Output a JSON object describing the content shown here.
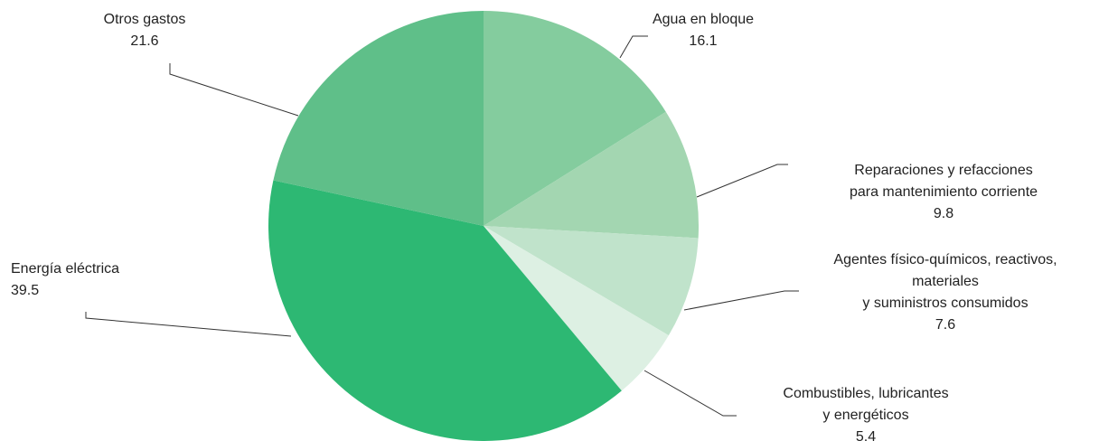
{
  "chart_data": {
    "type": "pie",
    "categories": [
      [
        "Agua en bloque"
      ],
      [
        "Reparaciones y refacciones",
        "para mantenimiento corriente"
      ],
      [
        "Agentes físico-químicos, reactivos,",
        "materiales",
        "y suministros consumidos"
      ],
      [
        "Combustibles, lubricantes",
        "y energéticos"
      ],
      [
        "Energía eléctrica"
      ],
      [
        "Otros gastos"
      ]
    ],
    "values": [
      16.1,
      9.8,
      7.6,
      5.4,
      39.5,
      21.6
    ],
    "colors": [
      "#84cc9e",
      "#a3d6b1",
      "#c0e3cb",
      "#ddf0e3",
      "#2db873",
      "#5fbf89"
    ]
  }
}
